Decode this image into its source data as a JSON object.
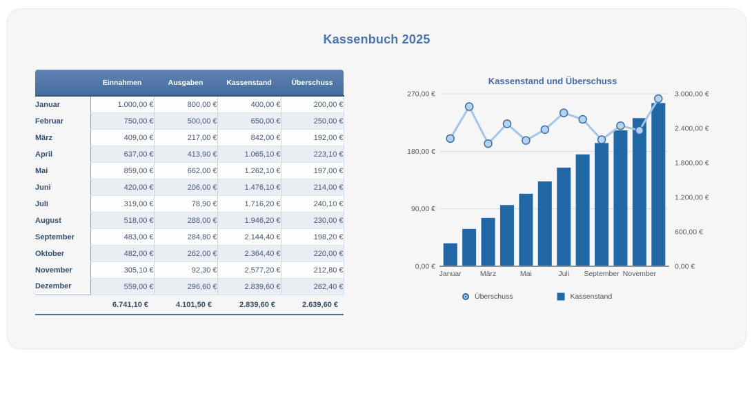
{
  "title": "Kassenbuch 2025",
  "accent_color": "#4a74ad",
  "table": {
    "columns": [
      "Einnahmen",
      "Ausgaben",
      "Kassenstand",
      "Überschuss"
    ],
    "rows": [
      {
        "month": "Januar",
        "einnahmen": "1.000,00 €",
        "ausgaben": "800,00 €",
        "kassenstand": "400,00 €",
        "ueberschuss": "200,00 €"
      },
      {
        "month": "Februar",
        "einnahmen": "750,00 €",
        "ausgaben": "500,00 €",
        "kassenstand": "650,00 €",
        "ueberschuss": "250,00 €"
      },
      {
        "month": "März",
        "einnahmen": "409,00 €",
        "ausgaben": "217,00 €",
        "kassenstand": "842,00 €",
        "ueberschuss": "192,00 €"
      },
      {
        "month": "April",
        "einnahmen": "637,00 €",
        "ausgaben": "413,90 €",
        "kassenstand": "1.065,10 €",
        "ueberschuss": "223,10 €"
      },
      {
        "month": "Mai",
        "einnahmen": "859,00 €",
        "ausgaben": "662,00 €",
        "kassenstand": "1.262,10 €",
        "ueberschuss": "197,00 €"
      },
      {
        "month": "Juni",
        "einnahmen": "420,00 €",
        "ausgaben": "206,00 €",
        "kassenstand": "1.476,10 €",
        "ueberschuss": "214,00 €"
      },
      {
        "month": "Juli",
        "einnahmen": "319,00 €",
        "ausgaben": "78,90 €",
        "kassenstand": "1.716,20 €",
        "ueberschuss": "240,10 €"
      },
      {
        "month": "August",
        "einnahmen": "518,00 €",
        "ausgaben": "288,00 €",
        "kassenstand": "1.946,20 €",
        "ueberschuss": "230,00 €"
      },
      {
        "month": "September",
        "einnahmen": "483,00 €",
        "ausgaben": "284,80 €",
        "kassenstand": "2.144,40 €",
        "ueberschuss": "198,20 €"
      },
      {
        "month": "Oktober",
        "einnahmen": "482,00 €",
        "ausgaben": "262,00 €",
        "kassenstand": "2.364,40 €",
        "ueberschuss": "220,00 €"
      },
      {
        "month": "November",
        "einnahmen": "305,10 €",
        "ausgaben": "92,30 €",
        "kassenstand": "2.577,20 €",
        "ueberschuss": "212,80 €"
      },
      {
        "month": "Dezember",
        "einnahmen": "559,00 €",
        "ausgaben": "296,60 €",
        "kassenstand": "2.839,60 €",
        "ueberschuss": "262,40 €"
      }
    ],
    "totals": {
      "einnahmen": "6.741,10 €",
      "ausgaben": "4.101,50 €",
      "kassenstand": "2.839,60 €",
      "ueberschuss": "2.639,60 €"
    }
  },
  "chart_data": {
    "type": "bar",
    "subtype": "combo bar+line, dual axis",
    "title": "Kassenstand und Überschuss",
    "categories": [
      "Januar",
      "Februar",
      "März",
      "April",
      "Mai",
      "Juni",
      "Juli",
      "August",
      "September",
      "Oktober",
      "November",
      "Dezember"
    ],
    "x_tick_labels": [
      "Januar",
      "März",
      "Mai",
      "Juli",
      "September",
      "November"
    ],
    "x_tick_indices": [
      0,
      2,
      4,
      6,
      8,
      10
    ],
    "series": [
      {
        "name": "Überschuss",
        "type": "line",
        "axis": "left",
        "values": [
          200,
          250,
          192,
          223.1,
          197,
          214,
          240.1,
          230,
          198.2,
          220,
          212.8,
          262.4
        ],
        "line_color": "#a6c4e4",
        "marker_fill": "#b5d2ee",
        "marker_stroke": "#3c6da6"
      },
      {
        "name": "Kassenstand",
        "type": "bar",
        "axis": "right",
        "values": [
          400,
          650,
          842,
          1065.1,
          1262.1,
          1476.1,
          1716.2,
          1946.2,
          2144.4,
          2364.4,
          2577.2,
          2839.6
        ],
        "color": "#2166a5"
      }
    ],
    "left_axis": {
      "min": 0,
      "max": 270,
      "tick_values": [
        270,
        180,
        90,
        0
      ],
      "tick_labels": [
        "270,00 €",
        "180,00 €",
        "90,00 €",
        "0,00 €"
      ]
    },
    "right_axis": {
      "min": 0,
      "max": 3000,
      "tick_values": [
        3000,
        2400,
        1800,
        1200,
        600,
        0
      ],
      "tick_labels": [
        "3.000,00 €",
        "2.400,00 €",
        "1.800,00 €",
        "1.200,00 €",
        "600,00 €",
        "0,00 €"
      ]
    },
    "grid": "horizontal, at left-axis ticks",
    "legend_position": "bottom",
    "gridline_color": "#d9d9d9",
    "baseline_color": "#909090",
    "axis_text_color": "#5a5a5a"
  }
}
